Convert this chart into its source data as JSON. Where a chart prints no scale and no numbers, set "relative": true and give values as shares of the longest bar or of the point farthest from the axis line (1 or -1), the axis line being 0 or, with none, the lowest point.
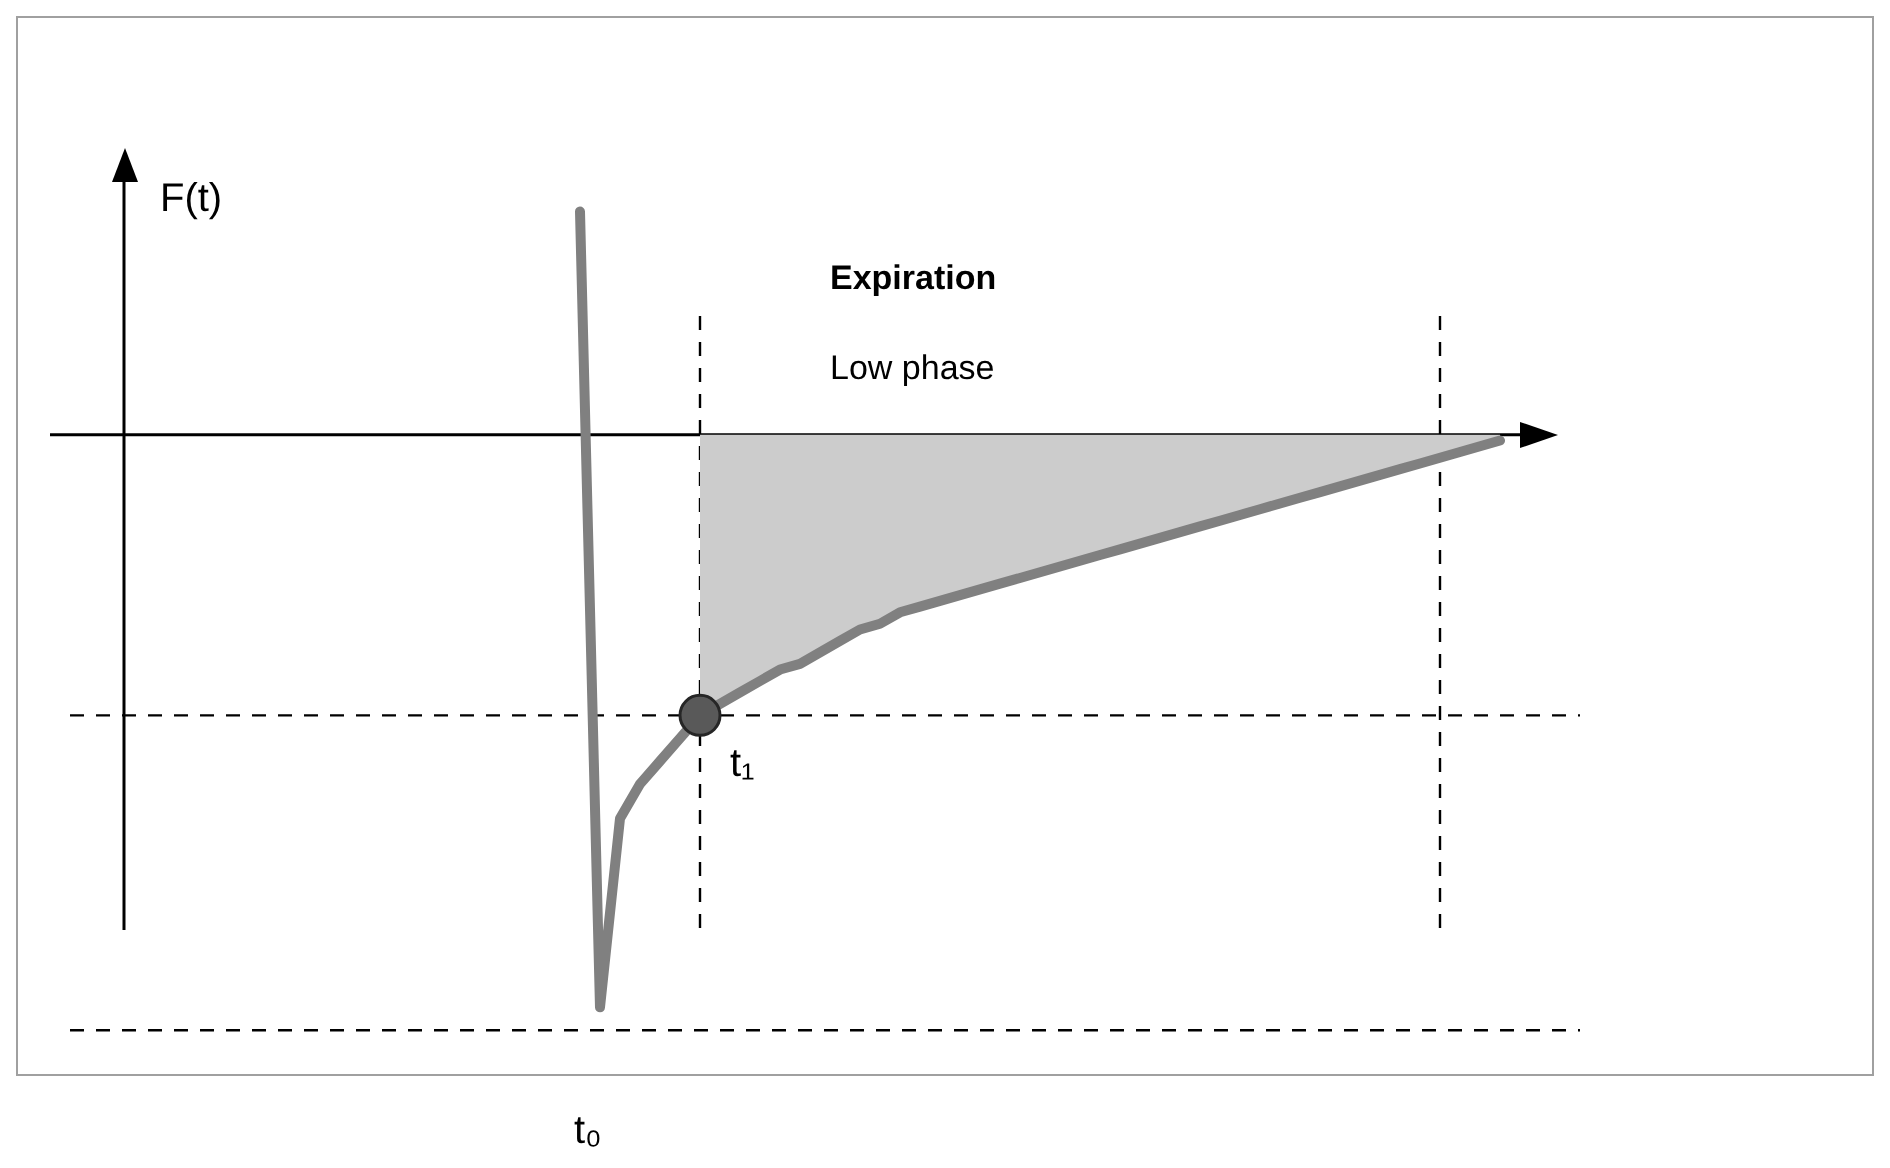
{
  "chart_data": {
    "type": "line",
    "title": "Expiration",
    "subtitle": "Low phase",
    "relative": true,
    "legend": false,
    "categories": [
      null,
      null,
      null,
      null,
      null,
      null,
      null,
      null,
      null,
      null,
      null,
      null,
      null,
      null,
      null,
      null,
      null,
      null,
      null,
      null,
      null,
      null,
      null,
      null,
      null,
      null,
      null,
      null,
      null,
      null,
      null,
      null,
      null,
      null,
      null,
      null,
      null,
      null,
      null,
      null,
      null,
      null,
      null,
      null,
      null,
      null,
      null
    ],
    "series": [
      {
        "color": "#808080",
        "values": [
          0.39,
          -1,
          -0.67,
          -0.61,
          -0.57,
          -0.53,
          -0.49,
          -0.47,
          -0.45,
          -0.43,
          -0.41,
          -0.4,
          -0.38,
          -0.36,
          -0.34,
          -0.33,
          -0.31,
          -0.3,
          -0.29,
          -0.28,
          -0.27,
          -0.26,
          -0.25,
          -0.24,
          -0.23,
          -0.22,
          -0.21,
          -0.2,
          -0.19,
          -0.18,
          -0.17,
          -0.16,
          -0.15,
          -0.14,
          -0.13,
          -0.12,
          -0.11,
          -0.1,
          -0.09,
          -0.08,
          -0.07,
          -0.06,
          -0.05,
          -0.04,
          -0.03,
          -0.02,
          -0.01
        ],
        "lower": [
          null,
          null,
          null,
          null,
          null,
          null,
          -0.49,
          -0.47,
          -0.45,
          -0.43,
          -0.41,
          -0.4,
          -0.38,
          -0.36,
          -0.34,
          -0.33,
          -0.31,
          -0.3,
          -0.29,
          -0.28,
          -0.27,
          -0.26,
          -0.25,
          -0.24,
          -0.23,
          -0.22,
          -0.21,
          -0.2,
          -0.19,
          -0.18,
          -0.17,
          -0.16,
          -0.15,
          -0.14,
          -0.13,
          -0.12,
          -0.11,
          -0.1,
          -0.09,
          -0.08,
          -0.07,
          -0.06,
          -0.05,
          -0.04,
          -0.03,
          -0.02,
          -0.01
        ],
        "upper": [
          null,
          null,
          null,
          null,
          null,
          null,
          0,
          0,
          0,
          0,
          0,
          0,
          0,
          0,
          0,
          0,
          0,
          0,
          0,
          0,
          0,
          0,
          0,
          0,
          0,
          0,
          0,
          0,
          0,
          0,
          0,
          0,
          0,
          0,
          0,
          0,
          0,
          0,
          0,
          0,
          0,
          0,
          0,
          0,
          0,
          0,
          0
        ]
      }
    ],
    "ref_lines": [
      {
        "axis": "y",
        "value": -0.49,
        "line_style": "dashed"
      },
      {
        "axis": "y",
        "value": -1.04,
        "line_style": "dashed"
      }
    ],
    "annotations": [
      {
        "text": "t₁",
        "y": -0.49
      },
      "t₀",
      "F(t)"
    ]
  }
}
